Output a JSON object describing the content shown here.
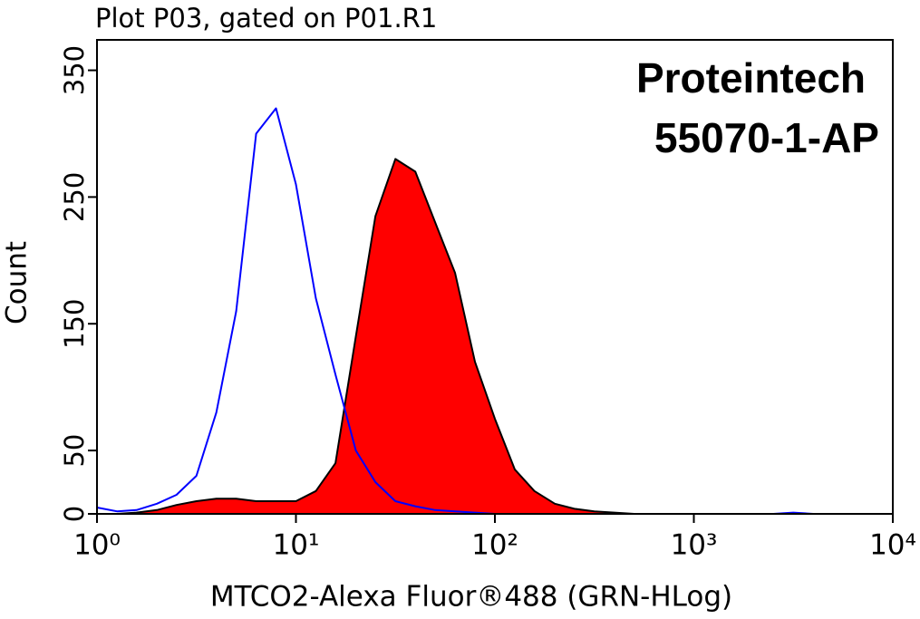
{
  "chart_data": {
    "type": "line",
    "title": "Plot P03, gated on P01.R1",
    "annotations": [
      "Proteintech",
      "55070-1-AP"
    ],
    "x_label": "MTCO2-Alexa Fluor®488 (GRN-HLog)",
    "y_label": "Count",
    "x_scale": "log",
    "x": [
      1,
      1.26,
      1.58,
      2,
      2.51,
      3.16,
      3.98,
      5.01,
      6.31,
      7.94,
      10,
      12.6,
      15.8,
      20,
      25.1,
      31.6,
      39.8,
      50.1,
      63.1,
      79.4,
      100,
      126,
      158,
      200,
      251,
      316,
      398,
      501,
      631,
      794,
      1000,
      1259,
      1585,
      1995,
      2512,
      3162,
      3981,
      5012,
      6310,
      7943,
      10000
    ],
    "series": [
      {
        "color": "#0000ff",
        "values": [
          5,
          2,
          3,
          8,
          15,
          30,
          80,
          160,
          300,
          320,
          260,
          170,
          110,
          50,
          25,
          10,
          6,
          3,
          2,
          1,
          0,
          0,
          0,
          0,
          0,
          0,
          0,
          0,
          0,
          0,
          0,
          0,
          0,
          0,
          0,
          1,
          0,
          0,
          0,
          0,
          0
        ]
      },
      {
        "color": "#000000",
        "fill": "#ff0000",
        "values": [
          0,
          0,
          1,
          3,
          7,
          10,
          12,
          12,
          10,
          10,
          10,
          18,
          40,
          140,
          235,
          280,
          270,
          230,
          190,
          120,
          75,
          35,
          18,
          8,
          4,
          2,
          1,
          0,
          0,
          0,
          0,
          0,
          0,
          0,
          0,
          0,
          0,
          0,
          0,
          0,
          0
        ]
      }
    ],
    "xlim": [
      1,
      10000
    ],
    "xticks": [
      {
        "value": 1,
        "label": "10⁰"
      },
      {
        "value": 10,
        "label": "10¹"
      },
      {
        "value": 100,
        "label": "10²"
      },
      {
        "value": 1000,
        "label": "10³"
      },
      {
        "value": 10000,
        "label": "10⁴"
      }
    ],
    "ylim": [
      0,
      374
    ],
    "yticks": [
      0,
      50,
      150,
      250,
      350
    ]
  }
}
